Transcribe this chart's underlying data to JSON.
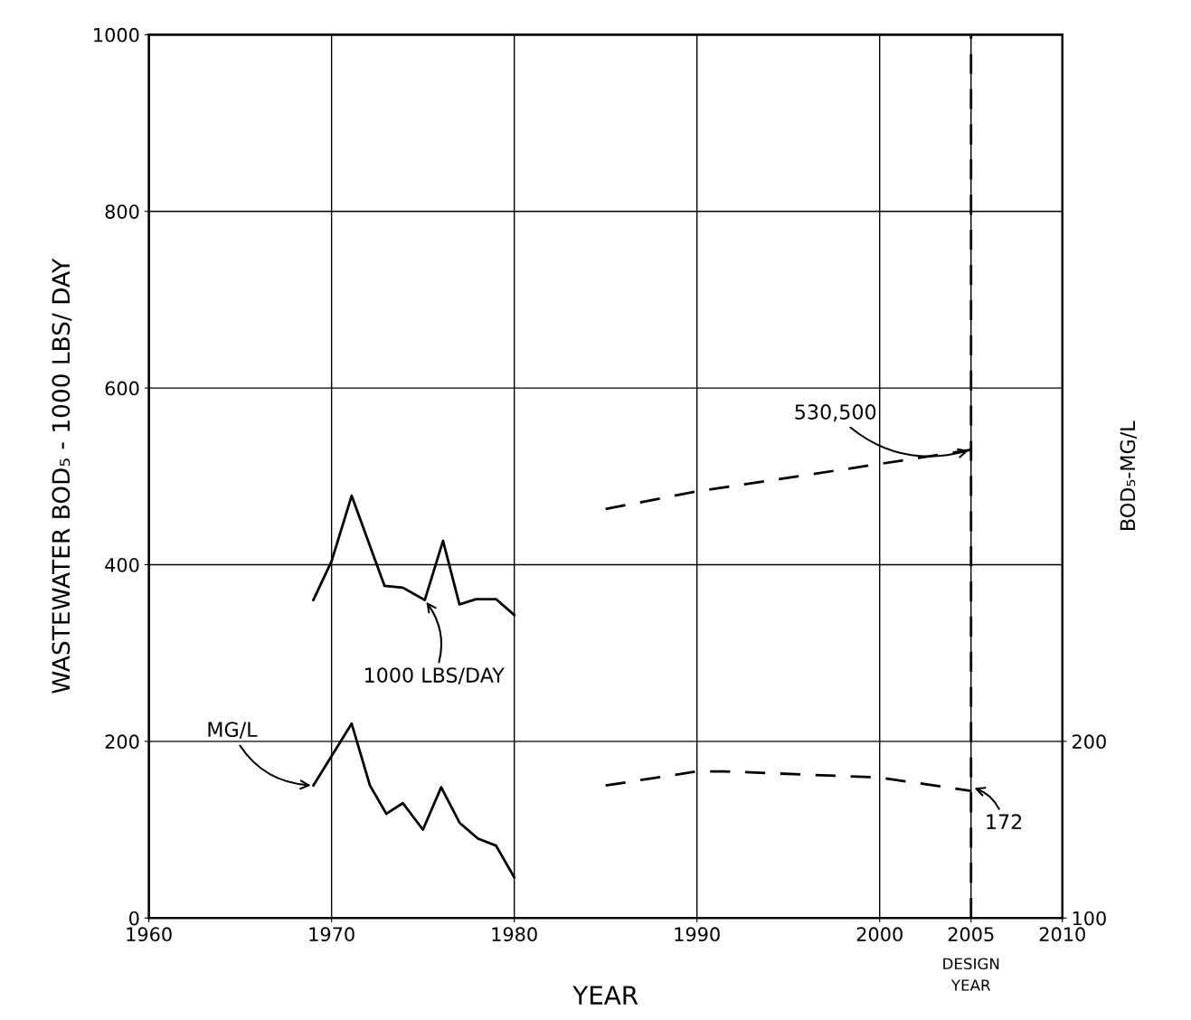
{
  "chart_data": {
    "type": "line",
    "xlabel": "YEAR",
    "ylabel": "WASTEWATER BOD₅ - 1000 LBS/ DAY",
    "y2label": "BOD₅-MG/L",
    "xlim": [
      1960,
      2010
    ],
    "xticks": [
      1960,
      1970,
      1980,
      1990,
      2000,
      2005,
      2010
    ],
    "ylim": [
      0,
      1000
    ],
    "yticks": [
      0,
      200,
      400,
      600,
      800,
      1000
    ],
    "y2lim": [
      100,
      600
    ],
    "y2ticks": [
      100,
      200
    ],
    "grid": true,
    "marker": "none",
    "series": [
      {
        "color": "#000000",
        "line_style": "solid",
        "x": [
          1969,
          1970,
          1971.1,
          1972.9,
          1973.9,
          1975.1,
          1976.1,
          1977,
          1977.9,
          1979,
          1980
        ],
        "values": [
          360,
          404,
          478,
          376,
          374,
          360,
          427,
          355,
          361,
          361,
          343
        ]
      },
      {
        "color": "#000000",
        "line_style": "dashed",
        "x": [
          1985,
          1990,
          2000,
          2005
        ],
        "values": [
          463,
          483,
          514,
          530
        ]
      },
      {
        "color": "#000000",
        "line_style": "solid",
        "axis": "y2",
        "x": [
          1969,
          1971.1,
          1972.1,
          1973,
          1973.9,
          1975,
          1976,
          1977,
          1978,
          1979,
          1980
        ],
        "values": [
          175,
          210,
          175,
          159,
          165,
          150,
          174,
          154,
          145,
          141,
          123
        ]
      },
      {
        "color": "#000000",
        "line_style": "dashed",
        "axis": "y2",
        "x": [
          1985,
          1990,
          1991.5,
          2000,
          2005
        ],
        "values": [
          175,
          183,
          183,
          179.5,
          172
        ]
      }
    ],
    "ref_lines": [
      {
        "axis": "x",
        "value": 2005,
        "label": "DESIGN YEAR",
        "color": "#000000",
        "line_style": "dashed"
      }
    ],
    "annotations": [
      {
        "text": "1000 LBS/DAY",
        "x": 1975.1,
        "y": 360
      },
      {
        "text": "MG/L",
        "x": 1969,
        "y": 150
      },
      {
        "text": "530,500",
        "x": 2005,
        "y": 530
      },
      "172"
    ]
  }
}
